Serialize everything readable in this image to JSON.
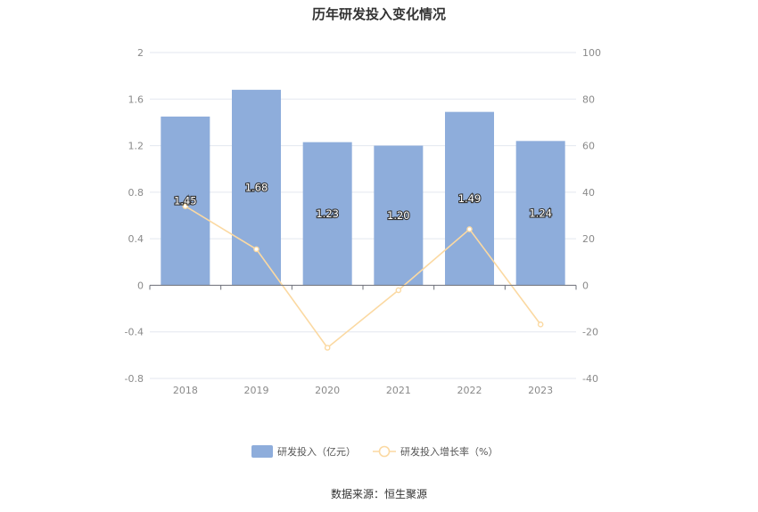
{
  "chart_data": {
    "type": "bar",
    "title": "历年研发投入变化情况",
    "categories": [
      "2018",
      "2019",
      "2020",
      "2021",
      "2022",
      "2023"
    ],
    "series": [
      {
        "name": "研发投入（亿元）",
        "type": "bar",
        "axis": "left",
        "values": [
          1.45,
          1.68,
          1.23,
          1.2,
          1.49,
          1.24
        ],
        "labels": [
          "1.45",
          "1.68",
          "1.23",
          "1.20",
          "1.49",
          "1.24"
        ],
        "color": "#8eaddb"
      },
      {
        "name": "研发投入增长率（%）",
        "type": "line",
        "axis": "right",
        "values": [
          34,
          15.5,
          -26.8,
          -2.1,
          24.1,
          -16.8
        ],
        "color": "#fbd9a2"
      }
    ],
    "y_left": {
      "min": -0.8,
      "max": 2,
      "ticks": [
        "2",
        "1.6",
        "1.2",
        "0.8",
        "0.4",
        "0",
        "-0.4",
        "-0.8"
      ]
    },
    "y_right": {
      "min": -40,
      "max": 100,
      "ticks": [
        "100",
        "80",
        "60",
        "40",
        "20",
        "0",
        "-20",
        "-40"
      ]
    },
    "grid": true,
    "legend_position": "bottom"
  },
  "source_text": "数据来源：恒生聚源"
}
